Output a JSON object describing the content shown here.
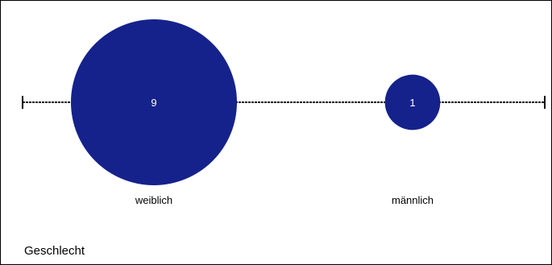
{
  "chart_data": {
    "type": "bubble",
    "title": "",
    "xlabel": "Geschlecht",
    "categories": [
      "weiblich",
      "männlich"
    ],
    "values": [
      9,
      1
    ],
    "colors": {
      "bubble": "#15228B",
      "bubble_text": "#FFFFFF",
      "axis": "#000000"
    },
    "legend": "none",
    "grid": false
  }
}
